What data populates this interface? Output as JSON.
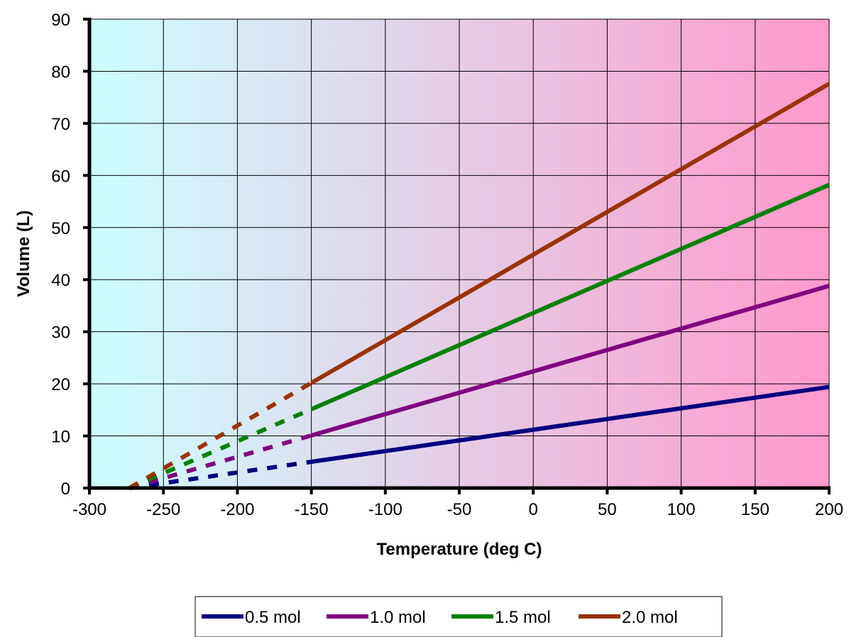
{
  "chart_data": {
    "type": "line",
    "title": "",
    "xlabel": "Temperature (deg C)",
    "ylabel": "Volume (L)",
    "xlim": [
      -300,
      200
    ],
    "ylim": [
      0,
      90
    ],
    "x_ticks": [
      "-300",
      "-250",
      "-200",
      "-150",
      "-100",
      "-50",
      "0",
      "50",
      "100",
      "150",
      "200"
    ],
    "y_ticks": [
      "0",
      "10",
      "20",
      "30",
      "40",
      "50",
      "60",
      "70",
      "80",
      "90"
    ],
    "grid": true,
    "legend_position": "bottom",
    "background": "gradient from light cyan (left) to pink (right)",
    "extrapolated_style": "dashed",
    "series": [
      {
        "name": "0.5 mol",
        "color": "#000080",
        "dashed": {
          "x": [
            -273,
            -250,
            -225,
            -200,
            -175,
            -150
          ],
          "y": [
            0.0,
            0.94,
            1.96,
            2.99,
            4.01,
            5.04
          ]
        },
        "solid": {
          "x": [
            -150,
            -100,
            -50,
            0,
            50,
            100,
            150,
            200
          ],
          "y": [
            5.04,
            7.09,
            9.14,
            11.2,
            13.25,
            15.3,
            17.35,
            19.4
          ]
        }
      },
      {
        "name": "1.0 mol",
        "color": "#800080",
        "dashed": {
          "x": [
            -273,
            -250,
            -225,
            -200,
            -175,
            -150
          ],
          "y": [
            0.0,
            1.89,
            3.94,
            5.99,
            8.04,
            10.09
          ]
        },
        "solid": {
          "x": [
            -150,
            -100,
            -50,
            0,
            50,
            100,
            150,
            200
          ],
          "y": [
            10.09,
            14.19,
            18.29,
            22.4,
            26.5,
            30.6,
            34.7,
            38.8
          ]
        }
      },
      {
        "name": "1.5 mol",
        "color": "#008000",
        "dashed": {
          "x": [
            -273,
            -250,
            -225,
            -200,
            -175,
            -150
          ],
          "y": [
            0.0,
            2.83,
            5.9,
            8.98,
            12.06,
            15.13
          ]
        },
        "solid": {
          "x": [
            -150,
            -100,
            -50,
            0,
            50,
            100,
            150,
            200
          ],
          "y": [
            15.13,
            21.28,
            27.44,
            33.6,
            39.75,
            45.9,
            52.05,
            58.2
          ]
        }
      },
      {
        "name": "2.0 mol",
        "color": "#993300",
        "dashed": {
          "x": [
            -273,
            -250,
            -225,
            -200,
            -175,
            -150
          ],
          "y": [
            0.0,
            3.77,
            7.87,
            11.98,
            16.08,
            20.18
          ]
        },
        "solid": {
          "x": [
            -150,
            -100,
            -50,
            0,
            50,
            100,
            150,
            200
          ],
          "y": [
            20.18,
            28.38,
            36.58,
            44.8,
            53.0,
            61.2,
            69.4,
            77.6
          ]
        }
      }
    ]
  }
}
